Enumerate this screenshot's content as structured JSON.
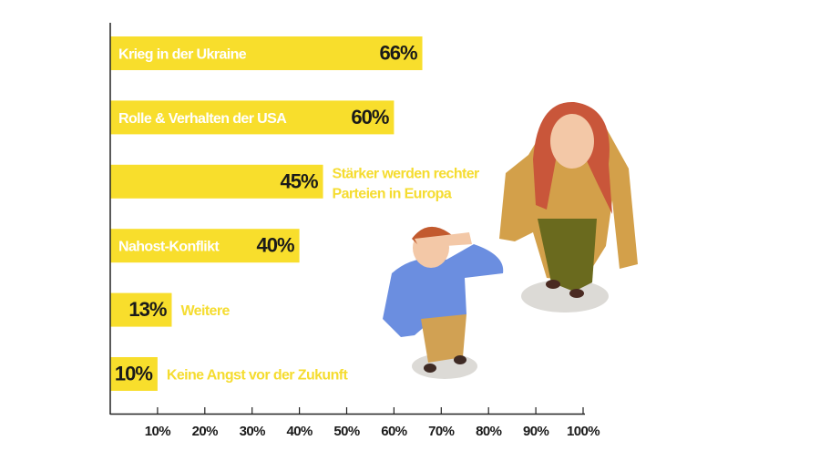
{
  "chart_data": {
    "type": "bar",
    "orientation": "horizontal",
    "categories": [
      "Krieg in der Ukraine",
      "Rolle & Verhalten der USA",
      "Stärker werden rechter Parteien in Europa",
      "Nahost-Konflikt",
      "Weitere",
      "Keine Angst vor der Zukunft"
    ],
    "category_lines": [
      [
        "Krieg in der Ukraine"
      ],
      [
        "Rolle & Verhalten der USA"
      ],
      [
        "Stärker werden rechter",
        "Parteien in Europa"
      ],
      [
        "Nahost-Konflikt"
      ],
      [
        "Weitere"
      ],
      [
        "Keine Angst vor der Zukunft"
      ]
    ],
    "label_inside": [
      true,
      true,
      false,
      true,
      false,
      false
    ],
    "values": [
      66,
      60,
      45,
      40,
      13,
      10
    ],
    "value_labels": [
      "66%",
      "60%",
      "45%",
      "40%",
      "13%",
      "10%"
    ],
    "xlim": [
      0,
      100
    ],
    "xticks": [
      10,
      20,
      30,
      40,
      50,
      60,
      70,
      80,
      90,
      100
    ],
    "xtick_labels": [
      "10%",
      "20%",
      "30%",
      "40%",
      "50%",
      "60%",
      "70%",
      "80%",
      "90%",
      "100%"
    ],
    "title": "",
    "xlabel": "",
    "ylabel": "",
    "grid": false,
    "colors": {
      "bar": "#f8de2c",
      "label_outside": "#f5dc30",
      "value_text": "#1a1a1a",
      "label_inside": "#ffffff"
    }
  }
}
